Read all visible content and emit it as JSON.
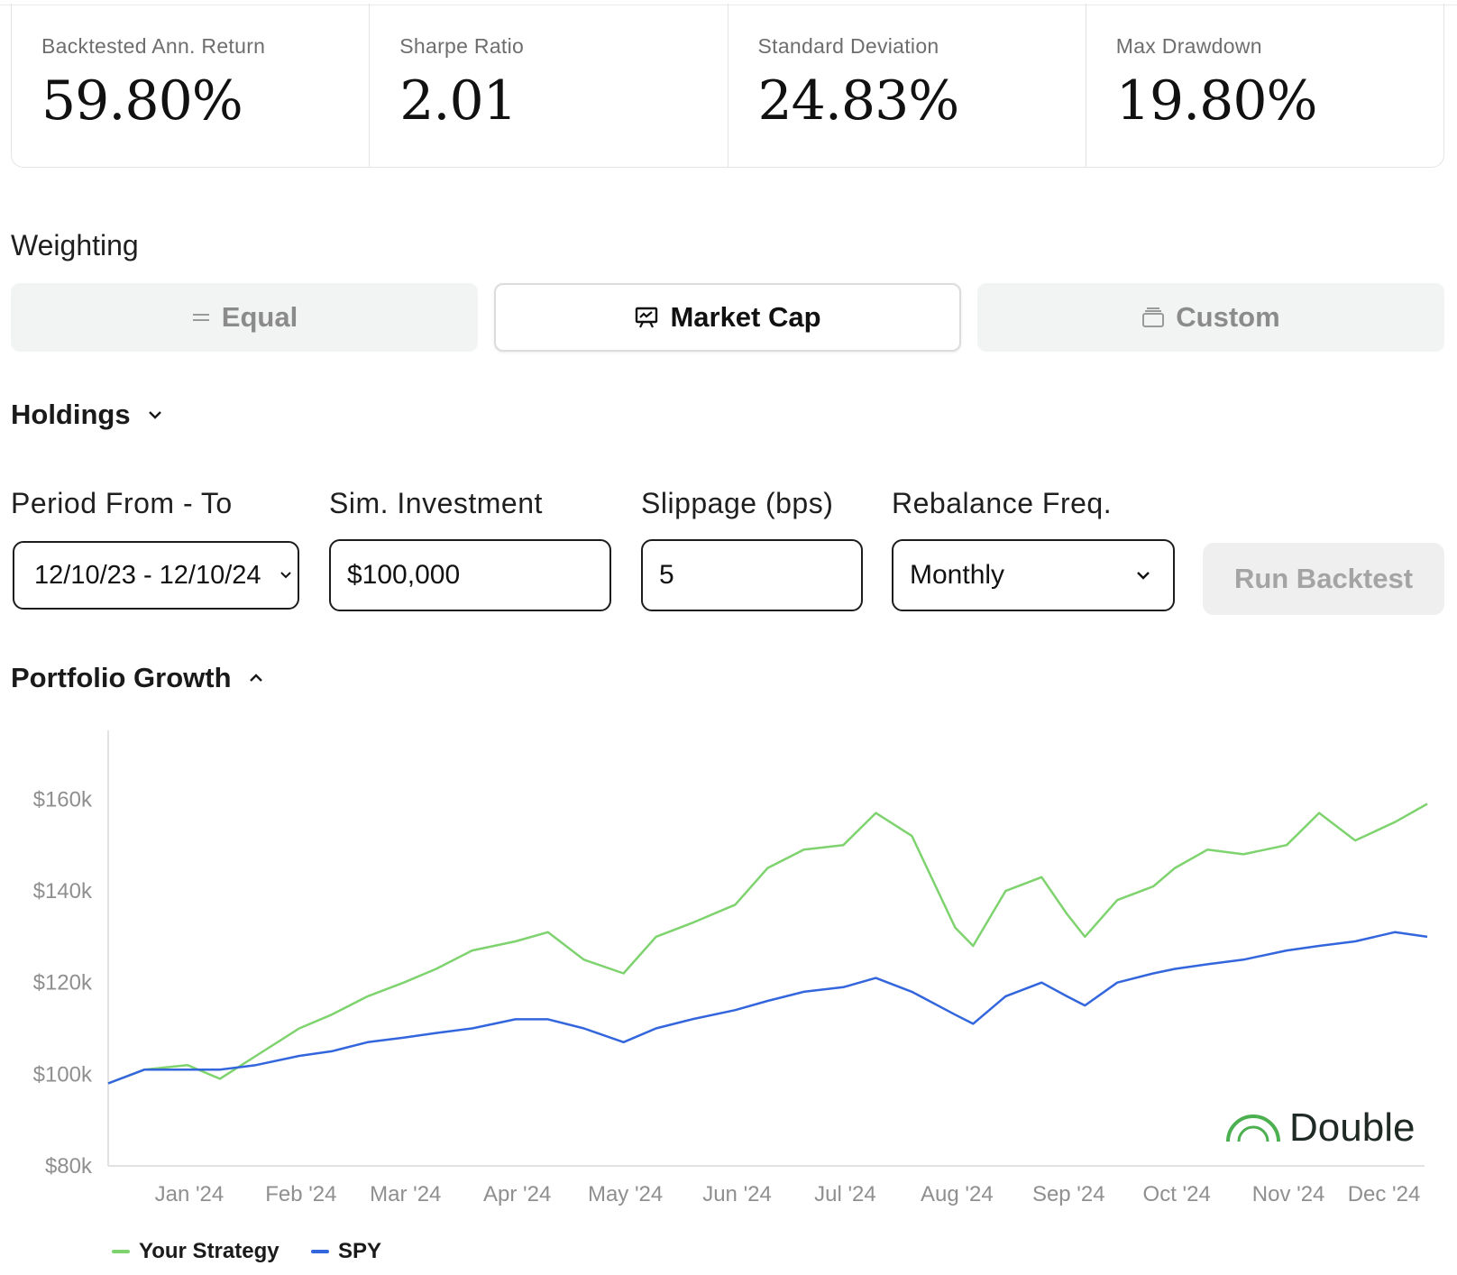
{
  "stats": [
    {
      "label": "Backtested Ann. Return",
      "value": "59.80%"
    },
    {
      "label": "Sharpe Ratio",
      "value": "2.01"
    },
    {
      "label": "Standard Deviation",
      "value": "24.83%"
    },
    {
      "label": "Max Drawdown",
      "value": "19.80%"
    }
  ],
  "weighting": {
    "label": "Weighting",
    "options": [
      {
        "label": "Equal",
        "icon": "equals-icon",
        "active": false
      },
      {
        "label": "Market Cap",
        "icon": "presentation-chart-icon",
        "active": true
      },
      {
        "label": "Custom",
        "icon": "layers-icon",
        "active": false
      }
    ]
  },
  "holdings": {
    "label": "Holdings",
    "icon": "chevron-down-icon"
  },
  "form": {
    "period": {
      "label": "Period From - To",
      "value": "12/10/23 - 12/10/24"
    },
    "investment": {
      "label": "Sim. Investment",
      "value": "$100,000"
    },
    "slippage": {
      "label": "Slippage (bps)",
      "value": "5"
    },
    "rebalance": {
      "label": "Rebalance Freq.",
      "value": "Monthly"
    },
    "run_button": "Run Backtest"
  },
  "portfolio_growth": {
    "label": "Portfolio Growth",
    "icon": "chevron-up-icon"
  },
  "brand": {
    "name": "Double",
    "color": "#4caf50"
  },
  "colors": {
    "strategy": "#7ed36f",
    "spy": "#3366dd",
    "brand_green": "#4caf50"
  },
  "chart_data": {
    "type": "line",
    "x": [
      "2023-12-10",
      "2023-12-20",
      "2024-01-01",
      "2024-01-10",
      "2024-01-20",
      "2024-02-01",
      "2024-02-10",
      "2024-02-20",
      "2024-03-01",
      "2024-03-10",
      "2024-03-20",
      "2024-04-01",
      "2024-04-10",
      "2024-04-20",
      "2024-05-01",
      "2024-05-10",
      "2024-05-20",
      "2024-06-01",
      "2024-06-10",
      "2024-06-20",
      "2024-07-01",
      "2024-07-10",
      "2024-07-20",
      "2024-08-01",
      "2024-08-06",
      "2024-08-15",
      "2024-08-25",
      "2024-09-01",
      "2024-09-06",
      "2024-09-15",
      "2024-09-25",
      "2024-10-01",
      "2024-10-10",
      "2024-10-20",
      "2024-11-01",
      "2024-11-10",
      "2024-11-20",
      "2024-12-01",
      "2024-12-10"
    ],
    "series": [
      {
        "name": "Your Strategy",
        "values": [
          98,
          101,
          102,
          99,
          104,
          110,
          113,
          117,
          120,
          123,
          127,
          129,
          131,
          125,
          122,
          130,
          133,
          137,
          145,
          149,
          150,
          157,
          152,
          132,
          128,
          140,
          143,
          135,
          130,
          138,
          141,
          145,
          149,
          148,
          150,
          157,
          151,
          155,
          159
        ]
      },
      {
        "name": "SPY",
        "values": [
          98,
          101,
          101,
          101,
          102,
          104,
          105,
          107,
          108,
          109,
          110,
          112,
          112,
          110,
          107,
          110,
          112,
          114,
          116,
          118,
          119,
          121,
          118,
          113,
          111,
          117,
          120,
          117,
          115,
          120,
          122,
          123,
          124,
          125,
          127,
          128,
          129,
          131,
          130
        ]
      }
    ],
    "y_ticks": [
      "$80k",
      "$100k",
      "$120k",
      "$140k",
      "$160k"
    ],
    "x_ticks": [
      "Jan '24",
      "Feb '24",
      "Mar '24",
      "Apr '24",
      "May '24",
      "Jun '24",
      "Jul '24",
      "Aug '24",
      "Sep '24",
      "Oct '24",
      "Nov '24",
      "Dec '24"
    ],
    "ylim": [
      80,
      177
    ],
    "legend": "bottom-left",
    "grid": false
  }
}
